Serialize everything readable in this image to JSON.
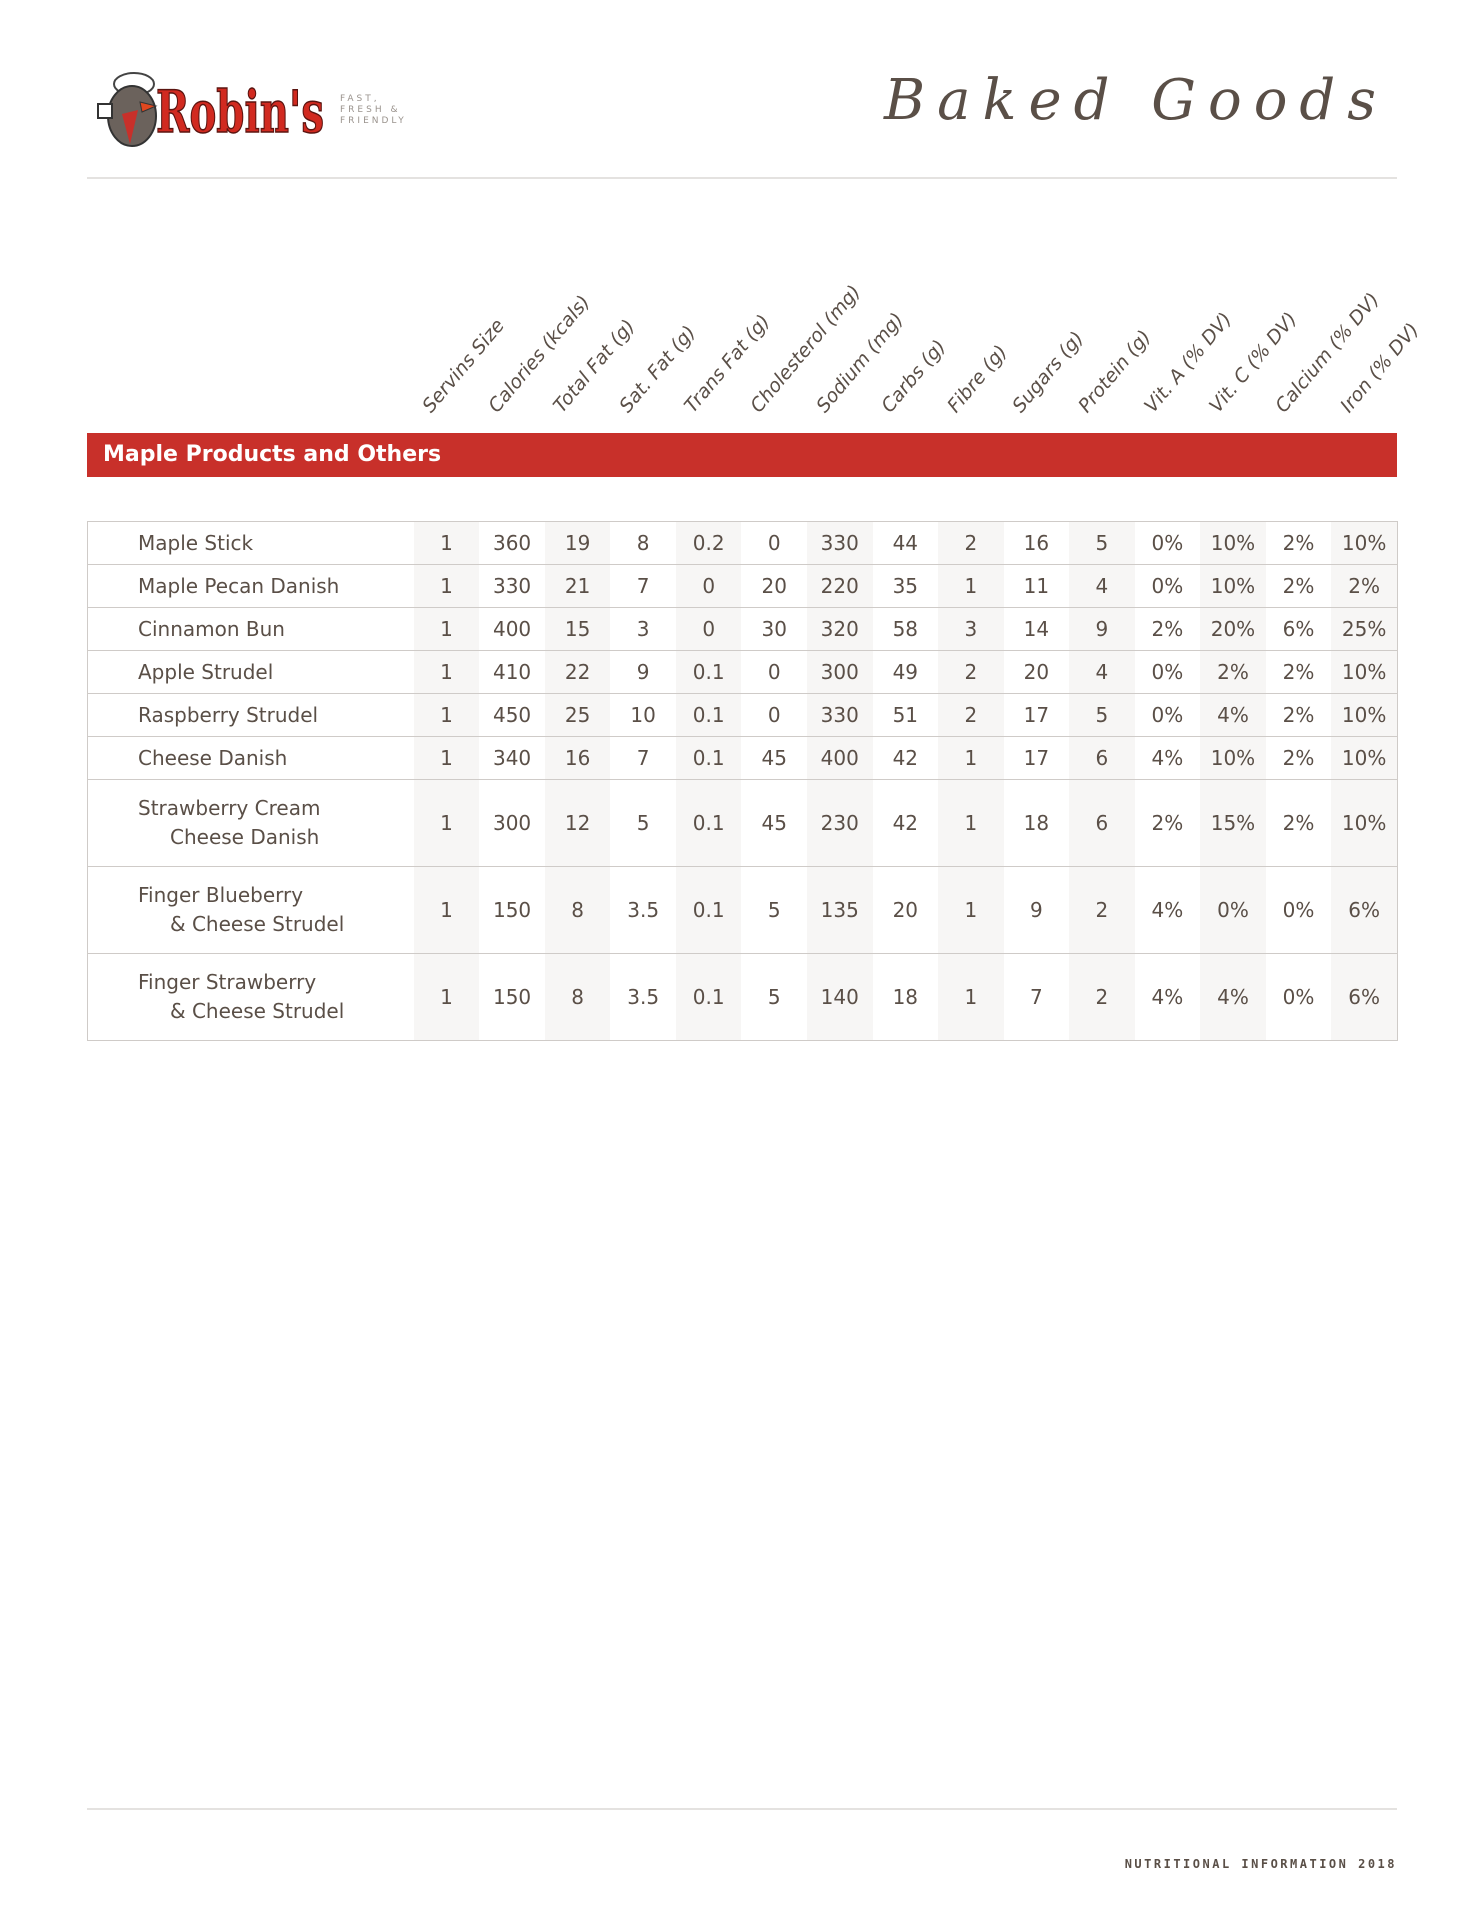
{
  "header": {
    "logo": {
      "brand": "Robin's",
      "tagline": [
        "FAST,",
        "FRESH &",
        "FRIENDLY"
      ]
    },
    "title": "Baked Goods"
  },
  "columns": [
    "Servins Size",
    "Calories (kcals)",
    "Total Fat (g)",
    "Sat. Fat (g)",
    "Trans Fat (g)",
    "Cholesterol (mg)",
    "Sodium (mg)",
    "Carbs (g)",
    "Fibre (g)",
    "Sugars (g)",
    "Protein (g)",
    "Vit. A (% DV)",
    "Vit. C (% DV)",
    "Calcium (% DV)",
    "Iron (% DV)"
  ],
  "section": {
    "title": "Maple Products and Others"
  },
  "rows": [
    {
      "name": [
        "Maple Stick"
      ],
      "values": [
        "1",
        "360",
        "19",
        "8",
        "0.2",
        "0",
        "330",
        "44",
        "2",
        "16",
        "5",
        "0%",
        "10%",
        "2%",
        "10%"
      ]
    },
    {
      "name": [
        "Maple Pecan Danish"
      ],
      "values": [
        "1",
        "330",
        "21",
        "7",
        "0",
        "20",
        "220",
        "35",
        "1",
        "11",
        "4",
        "0%",
        "10%",
        "2%",
        "2%"
      ]
    },
    {
      "name": [
        "Cinnamon Bun"
      ],
      "values": [
        "1",
        "400",
        "15",
        "3",
        "0",
        "30",
        "320",
        "58",
        "3",
        "14",
        "9",
        "2%",
        "20%",
        "6%",
        "25%"
      ]
    },
    {
      "name": [
        "Apple Strudel"
      ],
      "values": [
        "1",
        "410",
        "22",
        "9",
        "0.1",
        "0",
        "300",
        "49",
        "2",
        "20",
        "4",
        "0%",
        "2%",
        "2%",
        "10%"
      ]
    },
    {
      "name": [
        "Raspberry Strudel"
      ],
      "values": [
        "1",
        "450",
        "25",
        "10",
        "0.1",
        "0",
        "330",
        "51",
        "2",
        "17",
        "5",
        "0%",
        "4%",
        "2%",
        "10%"
      ]
    },
    {
      "name": [
        "Cheese Danish"
      ],
      "values": [
        "1",
        "340",
        "16",
        "7",
        "0.1",
        "45",
        "400",
        "42",
        "1",
        "17",
        "6",
        "4%",
        "10%",
        "2%",
        "10%"
      ]
    },
    {
      "name": [
        "Strawberry Cream",
        "Cheese Danish"
      ],
      "values": [
        "1",
        "300",
        "12",
        "5",
        "0.1",
        "45",
        "230",
        "42",
        "1",
        "18",
        "6",
        "2%",
        "15%",
        "2%",
        "10%"
      ]
    },
    {
      "name": [
        "Finger Blueberry",
        "& Cheese Strudel"
      ],
      "values": [
        "1",
        "150",
        "8",
        "3.5",
        "0.1",
        "5",
        "135",
        "20",
        "1",
        "9",
        "2",
        "4%",
        "0%",
        "0%",
        "6%"
      ]
    },
    {
      "name": [
        "Finger Strawberry",
        "& Cheese Strudel"
      ],
      "values": [
        "1",
        "150",
        "8",
        "3.5",
        "0.1",
        "5",
        "140",
        "18",
        "1",
        "7",
        "2",
        "4%",
        "4%",
        "0%",
        "6%"
      ]
    }
  ],
  "footer": {
    "text": "NUTRITIONAL INFORMATION 2018"
  },
  "colors": {
    "accent": "#c8302a",
    "text": "#5a4f47",
    "shade": "#f7f6f5"
  }
}
